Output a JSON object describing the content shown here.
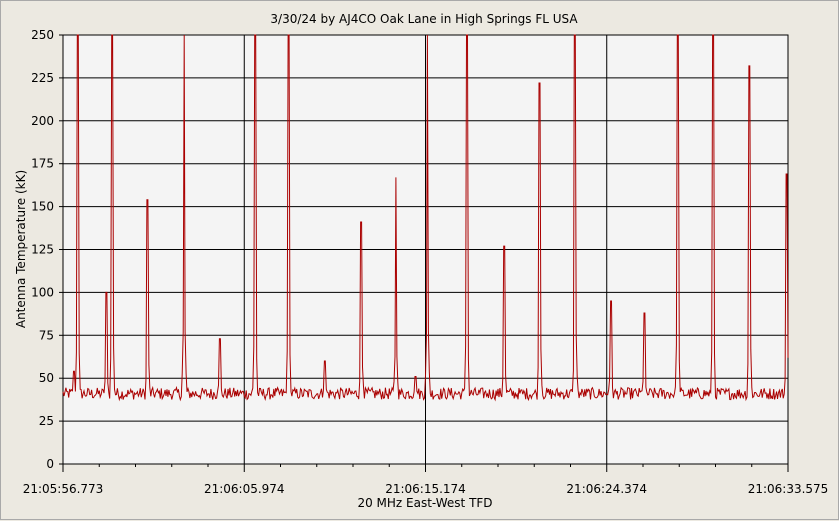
{
  "chart_data": {
    "type": "line",
    "title": "3/30/24  by  AJ4CO Oak Lane  in  High Springs FL USA",
    "xlabel": "20 MHz East-West TFD",
    "ylabel": "Antenna Temperature (kK)",
    "ylim": [
      0,
      250
    ],
    "yticks": [
      "0",
      "25",
      "50",
      "75",
      "100",
      "125",
      "150",
      "175",
      "200",
      "225",
      "250"
    ],
    "xlim": [
      0,
      36.802
    ],
    "xtick_values": [
      0,
      9.201,
      18.401,
      27.601,
      36.802
    ],
    "xtick_labels": [
      "21:05:56.773",
      "21:06:05.974",
      "21:06:15.174",
      "21:06:24.374",
      "21:06:33.575"
    ],
    "grid": true,
    "line_color": "#aa0000",
    "baseline": 41,
    "spikes": [
      {
        "x": 0.55,
        "y": 54
      },
      {
        "x": 0.75,
        "y": 250
      },
      {
        "x": 2.2,
        "y": 100
      },
      {
        "x": 2.5,
        "y": 250
      },
      {
        "x": 4.3,
        "y": 154
      },
      {
        "x": 6.15,
        "y": 250
      },
      {
        "x": 7.95,
        "y": 73
      },
      {
        "x": 9.75,
        "y": 250
      },
      {
        "x": 11.45,
        "y": 250
      },
      {
        "x": 13.3,
        "y": 60
      },
      {
        "x": 15.15,
        "y": 141
      },
      {
        "x": 16.9,
        "y": 167
      },
      {
        "x": 17.9,
        "y": 51
      },
      {
        "x": 18.5,
        "y": 250
      },
      {
        "x": 20.5,
        "y": 250
      },
      {
        "x": 22.4,
        "y": 127
      },
      {
        "x": 24.2,
        "y": 222
      },
      {
        "x": 26.0,
        "y": 250
      },
      {
        "x": 27.8,
        "y": 95
      },
      {
        "x": 29.5,
        "y": 88
      },
      {
        "x": 31.2,
        "y": 250
      },
      {
        "x": 33.0,
        "y": 250
      },
      {
        "x": 34.85,
        "y": 232
      },
      {
        "x": 36.75,
        "y": 169
      }
    ]
  }
}
